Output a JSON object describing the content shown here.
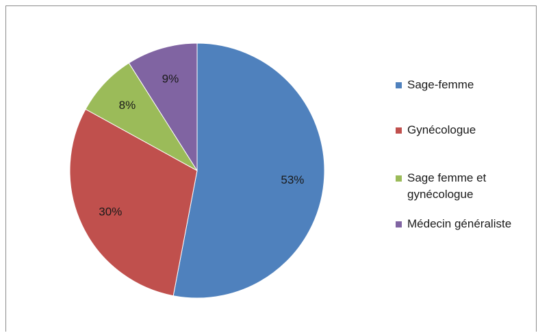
{
  "chart_data": {
    "type": "pie",
    "title": "",
    "slices": [
      {
        "label": "Sage-femme",
        "value": 53,
        "display": "53%",
        "color": "#4f81bd"
      },
      {
        "label": "Gynécologue",
        "value": 30,
        "display": "30%",
        "color": "#c0504d"
      },
      {
        "label": "Sage femme et\ngynécologue",
        "value": 8,
        "display": "8%",
        "color": "#9bbb59"
      },
      {
        "label": "Médecin généraliste",
        "value": 9,
        "display": "9%",
        "color": "#8064a2"
      }
    ],
    "legend_position": "right",
    "start_angle": "top",
    "direction": "clockwise"
  }
}
